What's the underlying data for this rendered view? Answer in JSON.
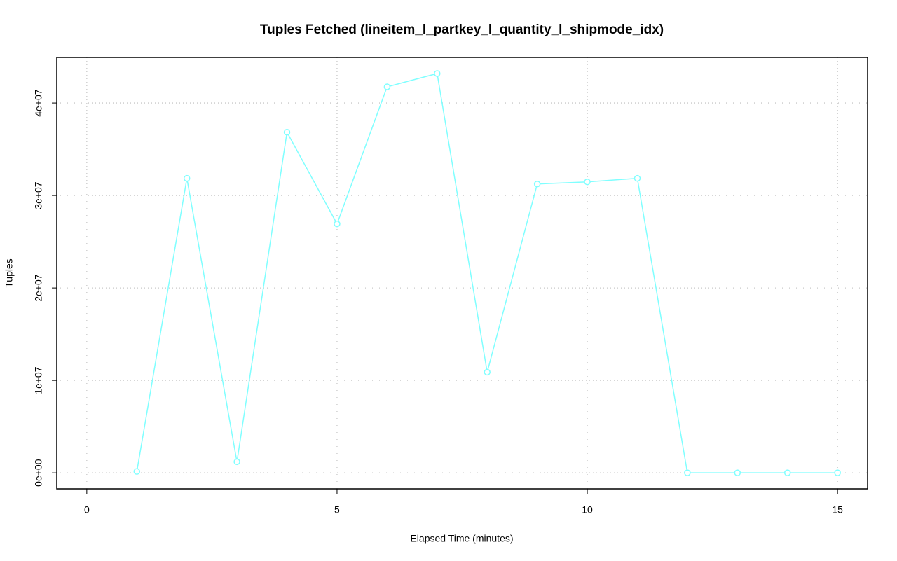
{
  "chart_data": {
    "type": "line",
    "title": "Tuples Fetched (lineitem_l_partkey_l_quantity_l_shipmode_idx)",
    "x_label": "Elapsed Time (minutes)",
    "y_label": "Tuples",
    "x": [
      1,
      2,
      3,
      4,
      5,
      6,
      7,
      8,
      9,
      10,
      11,
      12,
      13,
      14,
      15
    ],
    "series": [
      {
        "color": "#80ffff",
        "values": [
          150000,
          31850000,
          1200000,
          36840000,
          26930000,
          41750000,
          43190000,
          10890000,
          31240000,
          31470000,
          31850000,
          0,
          0,
          0,
          0
        ]
      }
    ],
    "xlim": [
      -0.6,
      15.6
    ],
    "xticks": [
      0,
      5,
      10,
      15
    ],
    "ylim": [
      -1730000,
      44930000
    ],
    "yticks": [
      {
        "value": 0,
        "label": "0e+00"
      },
      {
        "value": 10000000,
        "label": "1e+07"
      },
      {
        "value": 20000000,
        "label": "2e+07"
      },
      {
        "value": 30000000,
        "label": "3e+07"
      },
      {
        "value": 40000000,
        "label": "4e+07"
      }
    ],
    "grid": true
  }
}
